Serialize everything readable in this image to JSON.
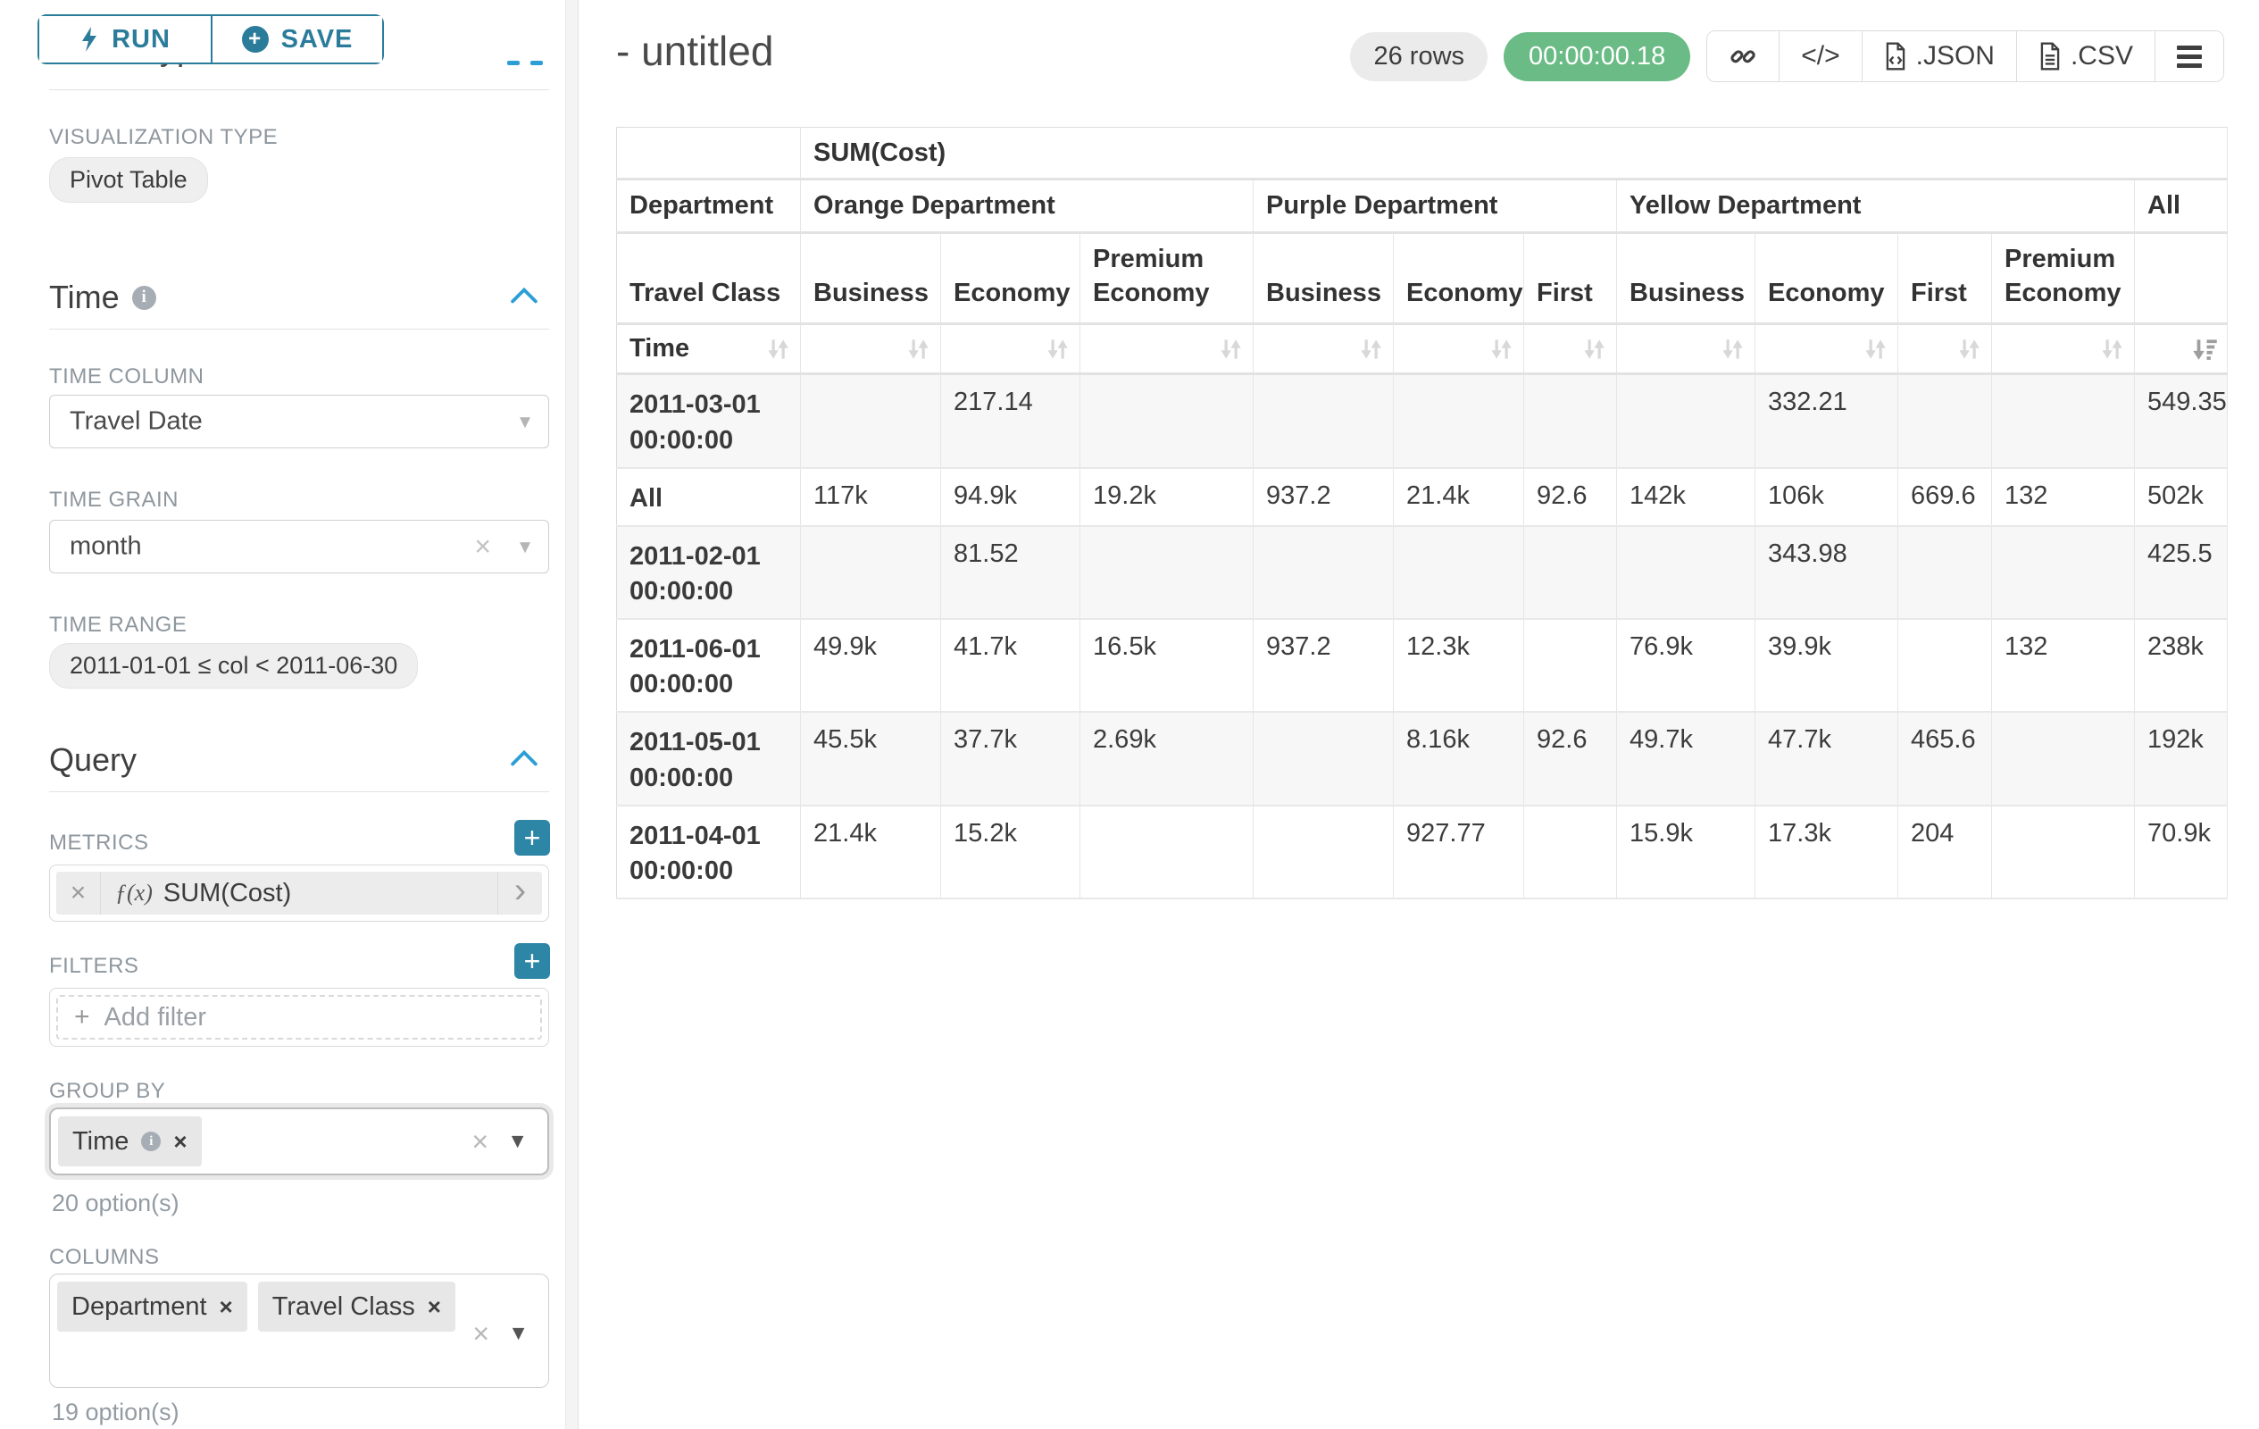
{
  "colors": {
    "teal": "#2b7c9b",
    "teal_button": "#2e86a6",
    "chevron_blue": "#2b9ed6",
    "timer_green": "#6abb85"
  },
  "panel": {
    "run_label": "RUN",
    "save_label": "SAVE",
    "chart_type": {
      "title": "Chart Type",
      "viz_type_label": "VISUALIZATION TYPE",
      "viz_type_value": "Pivot Table"
    },
    "time": {
      "title": "Time",
      "column_label": "TIME COLUMN",
      "column_value": "Travel Date",
      "grain_label": "TIME GRAIN",
      "grain_value": "month",
      "range_label": "TIME RANGE",
      "range_value": "2011-01-01 ≤ col < 2011-06-30"
    },
    "query": {
      "title": "Query",
      "metrics_label": "METRICS",
      "metric_fx": "ƒ(x)",
      "metric_value": "SUM(Cost)",
      "filters_label": "FILTERS",
      "add_filter_label": "Add filter",
      "group_by_label": "GROUP BY",
      "group_by_values": [
        "Time"
      ],
      "group_by_hint": "20 option(s)",
      "columns_label": "COLUMNS",
      "columns_values": [
        "Department",
        "Travel Class"
      ],
      "columns_hint": "19 option(s)"
    }
  },
  "header": {
    "title": "- untitled",
    "rows_badge": "26 rows",
    "timer": "00:00:00.18",
    "code_label": "</>",
    "json_label": ".JSON",
    "csv_label": ".CSV"
  },
  "table": {
    "metric_header": "SUM(Cost)",
    "row_header": "Department",
    "col_header": "Travel Class",
    "time_header": "Time",
    "groups": [
      {
        "label": "Orange Department",
        "span": 3
      },
      {
        "label": "Purple Department",
        "span": 3
      },
      {
        "label": "Yellow Department",
        "span": 4
      },
      {
        "label": "All",
        "span": 1
      }
    ],
    "classes": [
      "Business",
      "Economy",
      "Premium Economy",
      "Business",
      "Economy",
      "First",
      "Business",
      "Economy",
      "First",
      "Premium Economy",
      ""
    ],
    "sorted_desc_column": "All",
    "rows": [
      {
        "label": "2011-03-01 00:00:00",
        "values": [
          "",
          "217.14",
          "",
          "",
          "",
          "",
          "",
          "332.21",
          "",
          "",
          "549.35"
        ]
      },
      {
        "label": "All",
        "values": [
          "117k",
          "94.9k",
          "19.2k",
          "937.2",
          "21.4k",
          "92.6",
          "142k",
          "106k",
          "669.6",
          "132",
          "502k"
        ]
      },
      {
        "label": "2011-02-01 00:00:00",
        "values": [
          "",
          "81.52",
          "",
          "",
          "",
          "",
          "",
          "343.98",
          "",
          "",
          "425.5"
        ]
      },
      {
        "label": "2011-06-01 00:00:00",
        "values": [
          "49.9k",
          "41.7k",
          "16.5k",
          "937.2",
          "12.3k",
          "",
          "76.9k",
          "39.9k",
          "",
          "132",
          "238k"
        ]
      },
      {
        "label": "2011-05-01 00:00:00",
        "values": [
          "45.5k",
          "37.7k",
          "2.69k",
          "",
          "8.16k",
          "92.6",
          "49.7k",
          "47.7k",
          "465.6",
          "",
          "192k"
        ]
      },
      {
        "label": "2011-04-01 00:00:00",
        "values": [
          "21.4k",
          "15.2k",
          "",
          "",
          "927.77",
          "",
          "15.9k",
          "17.3k",
          "204",
          "",
          "70.9k"
        ]
      }
    ]
  }
}
